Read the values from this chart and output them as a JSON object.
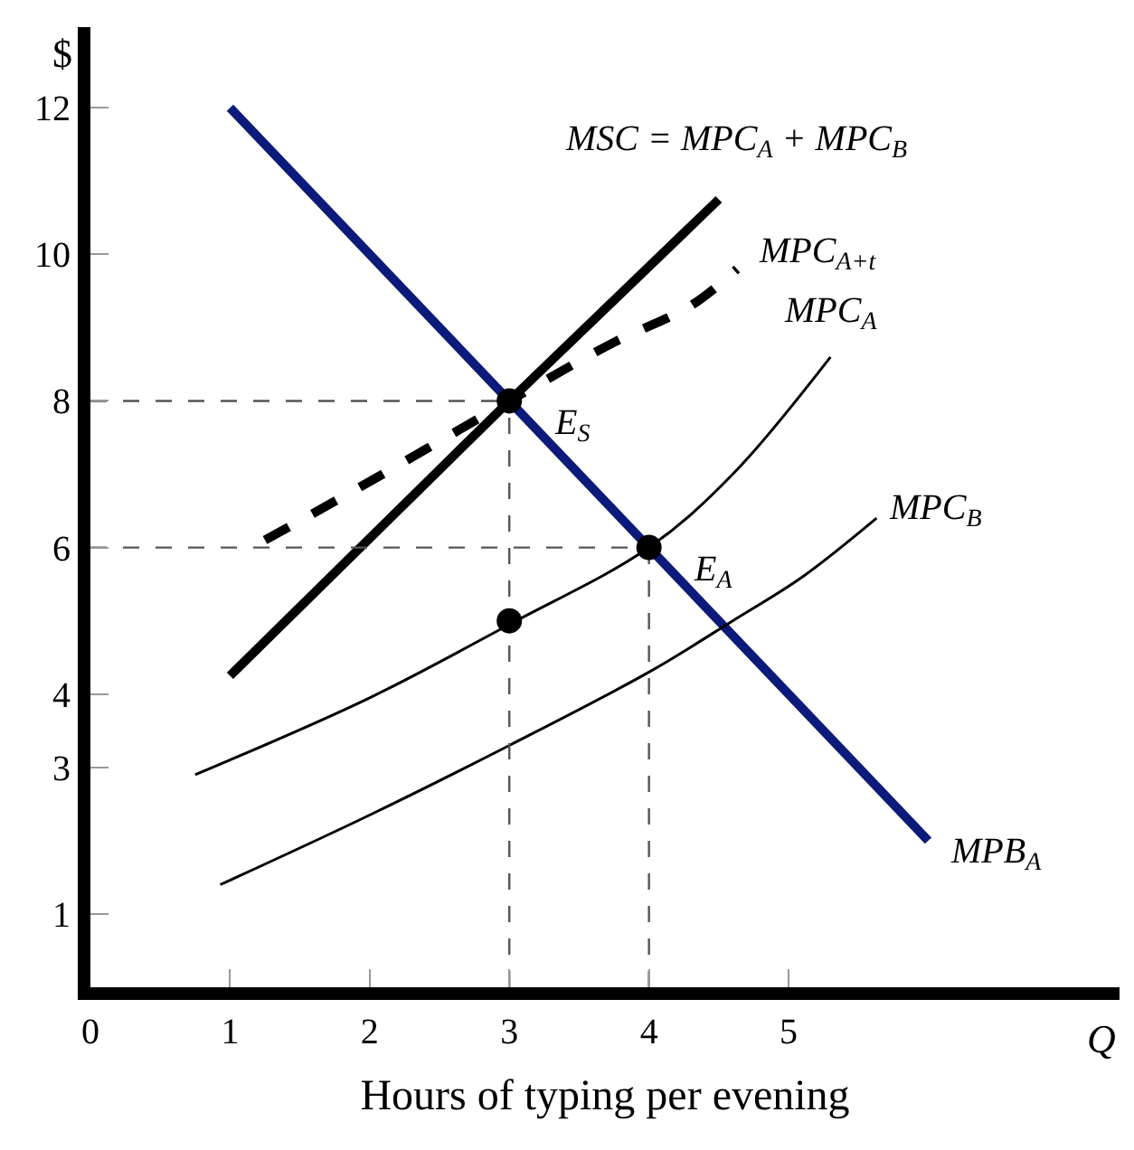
{
  "chart_data": {
    "type": "line",
    "xlabel": "Hours of typing per evening",
    "ylabel": "$",
    "xlim": [
      0,
      7.37
    ],
    "ylim": [
      0,
      13.1
    ],
    "xticks": [
      0,
      1,
      2,
      3,
      4,
      5
    ],
    "yticks": [
      1,
      3,
      4,
      6,
      8,
      10,
      12
    ],
    "series": [
      {
        "name": "MPB$_{A}$",
        "color": "#0c1a7a",
        "x": [
          1,
          6
        ],
        "values": [
          12,
          2
        ]
      },
      {
        "name": "MSC = MPC$_{A}$ + MPC$_{B}$",
        "color": "#000000",
        "x": [
          1,
          3,
          4.5
        ],
        "values": [
          4.25,
          8,
          10.75
        ]
      },
      {
        "name": "MPC$_{A+t}$",
        "color": "#000000",
        "line_style": "dashed",
        "x": [
          1.25,
          2,
          3,
          3.75,
          4.3,
          4.63
        ],
        "values": [
          6.1,
          6.9,
          8,
          8.8,
          9.3,
          9.8
        ]
      },
      {
        "name": "MPC$_{A}$",
        "color": "#000000",
        "x": [
          0.75,
          2,
          3,
          4,
          4.6,
          5.3
        ],
        "values": [
          2.9,
          3.95,
          4.95,
          6,
          7,
          8.6
        ]
      },
      {
        "name": "MPC$_{B}$",
        "color": "#000000",
        "x": [
          0.93,
          2,
          3,
          4,
          4.6,
          5.1,
          5.63
        ],
        "values": [
          1.4,
          2.35,
          3.3,
          4.3,
          5.0,
          5.6,
          6.4
        ]
      },
      {
        "color": "#555555",
        "line_style": "dashed",
        "x": [
          0,
          3
        ],
        "values": [
          8,
          8
        ]
      },
      {
        "color": "#555555",
        "line_style": "dashed",
        "x": [
          0,
          4
        ],
        "values": [
          6,
          6
        ]
      },
      {
        "color": "#555555",
        "line_style": "dashed",
        "x": [
          3,
          3
        ],
        "values": [
          0,
          8
        ]
      },
      {
        "color": "#555555",
        "line_style": "dashed",
        "x": [
          4,
          4
        ],
        "values": [
          0,
          6
        ]
      },
      {
        "type": "scatter",
        "marker": "circle",
        "color": "#000000",
        "x": [
          3,
          4,
          3
        ],
        "values": [
          8,
          6,
          5
        ]
      }
    ],
    "annotations": [
      {
        "text": "E$_{S}$",
        "x": 3,
        "y": 8
      },
      {
        "text": "E$_{A}$",
        "x": 4,
        "y": 6
      },
      "Q"
    ]
  }
}
